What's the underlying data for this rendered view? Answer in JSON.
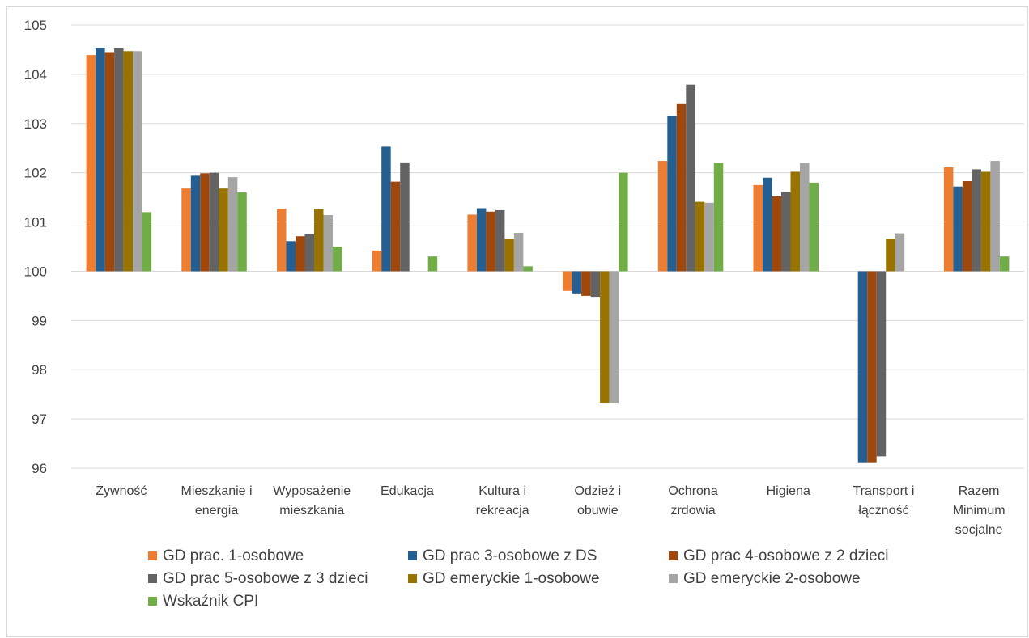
{
  "chart_data": {
    "type": "bar",
    "title": "",
    "xlabel": "",
    "ylabel": "",
    "ylim": [
      96,
      105
    ],
    "y_baseline": 100,
    "yticks": [
      "96",
      "97",
      "98",
      "99",
      "100",
      "101",
      "102",
      "103",
      "104",
      "105"
    ],
    "grid": true,
    "legend_position": "bottom",
    "categories": [
      "Żywność",
      "Mieszkanie i energia",
      "Wyposażenie mieszkania",
      "Edukacja",
      "Kultura i rekreacja",
      "Odzież i obuwie",
      "Ochrona zrdowia",
      "Higiena",
      "Transport i łączność",
      "Razem Minimum socjalne"
    ],
    "category_label_lines": [
      [
        "Żywność"
      ],
      [
        "Mieszkanie i",
        "energia"
      ],
      [
        "Wyposażenie",
        "mieszkania"
      ],
      [
        "Edukacja"
      ],
      [
        "Kultura i",
        "rekreacja"
      ],
      [
        "Odzież i",
        "obuwie"
      ],
      [
        "Ochrona",
        "zrdowia"
      ],
      [
        "Higiena"
      ],
      [
        "Transport i",
        "łączność"
      ],
      [
        "Razem",
        "Minimum",
        "socjalne"
      ]
    ],
    "series": [
      {
        "name": "GD prac. 1-osobowe",
        "color": "#ED7D31",
        "values": [
          104.39,
          101.68,
          101.27,
          100.42,
          101.15,
          99.6,
          102.24,
          101.75,
          100.0,
          102.11
        ]
      },
      {
        "name": "GD prac 3-osobowe z DS",
        "color": "#255E91",
        "values": [
          104.54,
          101.94,
          100.61,
          102.53,
          101.28,
          99.55,
          103.16,
          101.9,
          96.12,
          101.72
        ]
      },
      {
        "name": "GD prac 4-osobowe z 2 dzieci",
        "color": "#9E480E",
        "values": [
          104.45,
          101.99,
          100.71,
          101.82,
          101.21,
          99.5,
          103.41,
          101.52,
          96.12,
          101.83
        ]
      },
      {
        "name": "GD prac 5-osobowe z 3 dzieci",
        "color": "#636363",
        "values": [
          104.54,
          102.0,
          100.75,
          102.21,
          101.24,
          99.48,
          103.79,
          101.6,
          96.24,
          102.07
        ]
      },
      {
        "name": "GD emeryckie 1-osobowe",
        "color": "#997300",
        "values": [
          104.47,
          101.68,
          101.26,
          100.0,
          100.66,
          97.33,
          101.41,
          102.02,
          100.66,
          102.02
        ]
      },
      {
        "name": "GD emeryckie 2-osobowe",
        "color": "#A5A5A5",
        "values": [
          104.47,
          101.91,
          101.14,
          100.0,
          100.78,
          97.33,
          101.39,
          102.2,
          100.77,
          102.24
        ]
      },
      {
        "name": "Wskaźnik CPI",
        "color": "#70AD47",
        "values": [
          101.2,
          101.6,
          100.5,
          100.3,
          100.1,
          102.0,
          102.2,
          101.8,
          100.0,
          100.3
        ]
      }
    ]
  }
}
